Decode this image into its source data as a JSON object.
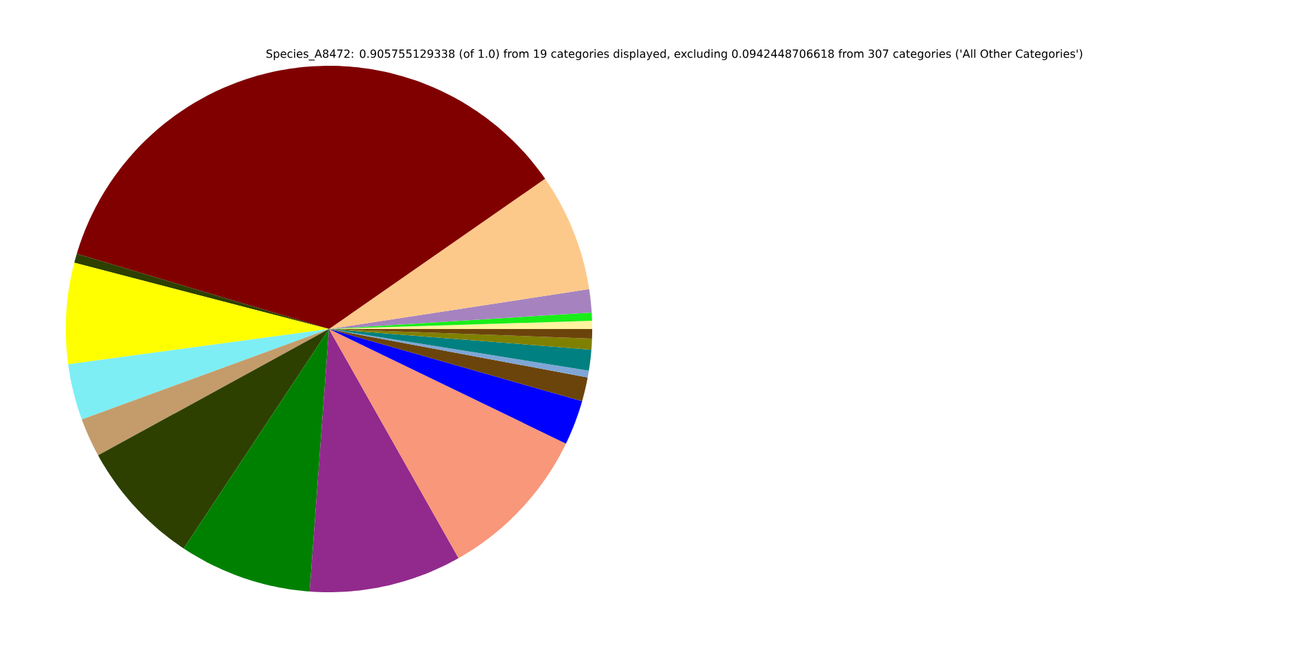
{
  "chart_data": {
    "type": "pie",
    "title": "Species_A8472: 0.905755129338 (of 1.0) from 19 categories displayed, excluding 0.0942448706618 from 307 categories ('All Other Categories')",
    "categories": [
      null,
      null,
      null,
      null,
      null,
      null,
      null,
      null,
      null,
      null,
      null,
      null,
      null,
      null,
      null,
      null,
      null,
      null,
      null
    ],
    "values": [
      0.5,
      0.5,
      1.42,
      7.25,
      35.72,
      0.56,
      6.19,
      3.44,
      2.39,
      7.72,
      8.14,
      9.36,
      9.64,
      2.75,
      1.47,
      0.42,
      1.28,
      0.67,
      0.58
    ],
    "colors": [
      "#fff3a0",
      "#19ee19",
      "#a683bf",
      "#fdc98a",
      "#800000",
      "#2d4000",
      "#ffff00",
      "#7deef4",
      "#c49c6b",
      "#2d4000",
      "#008000",
      "#912a8c",
      "#f8977a",
      "#0000ff",
      "#6b440b",
      "#7fa6d6",
      "#008080",
      "#808000",
      "#6b440b"
    ]
  }
}
